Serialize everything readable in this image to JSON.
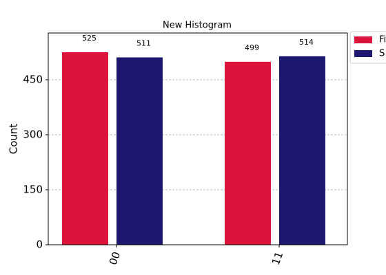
{
  "chart_data": {
    "type": "bar",
    "title": "New Histogram",
    "y_label": "Count",
    "categories": [
      "00",
      "11"
    ],
    "series": [
      {
        "name": "Fi",
        "color": "#dc143c",
        "values": [
          525,
          499
        ]
      },
      {
        "name": "S",
        "color": "#1c1870",
        "values": [
          511,
          514
        ]
      }
    ],
    "ylim": [
      0,
      577.5
    ],
    "yticks": [
      0,
      150,
      300,
      450
    ],
    "grid": true,
    "legend": "outside-upper-right"
  }
}
